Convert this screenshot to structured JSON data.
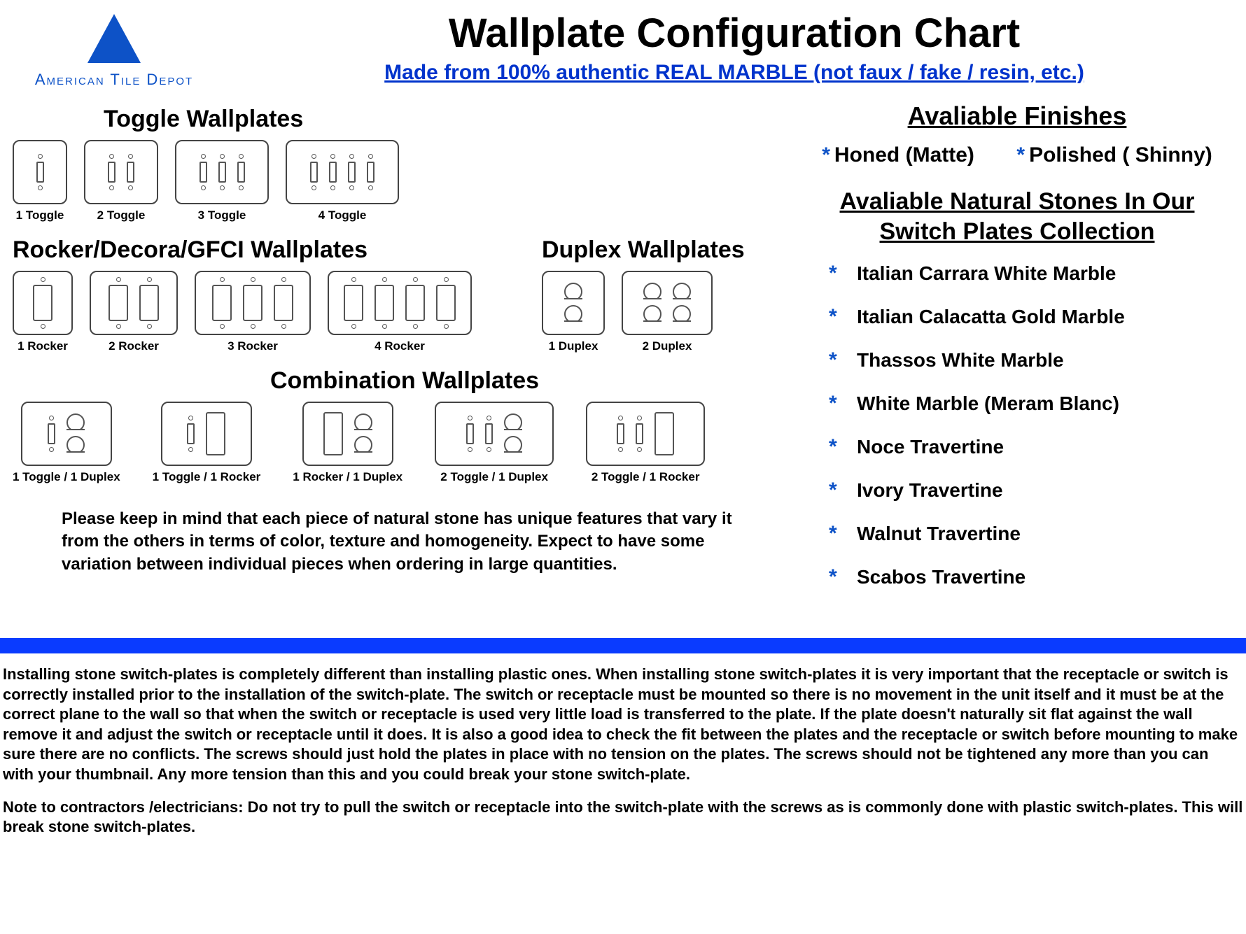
{
  "logo": {
    "brand": "American Tile Depot"
  },
  "title": "Wallplate Configuration Chart",
  "subtitle": "Made from 100% authentic REAL MARBLE (not faux / fake / resin, etc.)",
  "sections": {
    "toggle_title": "Toggle Wallplates",
    "rocker_title": "Rocker/Decora/GFCI Wallplates",
    "duplex_title": "Duplex Wallplates",
    "combo_title": "Combination Wallplates"
  },
  "toggles": [
    {
      "label": "1 Toggle",
      "gangs": 1
    },
    {
      "label": "2 Toggle",
      "gangs": 2
    },
    {
      "label": "3 Toggle",
      "gangs": 3
    },
    {
      "label": "4 Toggle",
      "gangs": 4
    }
  ],
  "rockers": [
    {
      "label": "1 Rocker",
      "gangs": 1
    },
    {
      "label": "2 Rocker",
      "gangs": 2
    },
    {
      "label": "3 Rocker",
      "gangs": 3
    },
    {
      "label": "4 Rocker",
      "gangs": 4
    }
  ],
  "duplex": [
    {
      "label": "1 Duplex",
      "gangs": 1
    },
    {
      "label": "2 Duplex",
      "gangs": 2
    }
  ],
  "combos": [
    {
      "label": "1 Toggle / 1 Duplex",
      "slots": [
        "toggle",
        "duplex"
      ]
    },
    {
      "label": "1 Toggle / 1 Rocker",
      "slots": [
        "toggle",
        "rocker"
      ]
    },
    {
      "label": "1 Rocker / 1 Duplex",
      "slots": [
        "rocker",
        "duplex"
      ]
    },
    {
      "label": "2 Toggle / 1 Duplex",
      "slots": [
        "toggle",
        "toggle",
        "duplex"
      ]
    },
    {
      "label": "2 Toggle / 1 Rocker",
      "slots": [
        "toggle",
        "toggle",
        "rocker"
      ]
    }
  ],
  "note": "Please keep in mind that each piece of natural stone has unique features that vary it from the others in terms of color, texture and homogeneity. Expect to have some variation between individual pieces when ordering in large quantities.",
  "finishes_title": "Avaliable Finishes",
  "finishes": [
    "Honed (Matte)",
    "Polished ( Shinny)"
  ],
  "stones_title": "Avaliable Natural Stones In Our Switch Plates Collection",
  "stones": [
    "Italian Carrara White Marble",
    "Italian Calacatta Gold Marble",
    "Thassos White Marble",
    "White Marble (Meram Blanc)",
    "Noce Travertine",
    "Ivory Travertine",
    "Walnut Travertine",
    "Scabos Travertine"
  ],
  "bottom_para1": "Installing stone switch-plates is completely different than installing plastic ones. When installing stone switch-plates it is very important that the receptacle or switch is correctly installed prior to the installation of the switch-plate. The switch or receptacle must be mounted so there is no movement in the unit itself and it must be at the correct plane to the wall so that when the switch or receptacle is used very little load is transferred to the plate. If the plate doesn't naturally sit flat against the wall remove it and adjust the switch or receptacle until it does. It is also a good idea to check the fit between the plates and the receptacle or switch before mounting to make sure there are no conflicts. The screws should just hold the plates in place with no tension on the plates. The screws should not be tightened any more than you can with your thumbnail. Any more tension than this and you could break your stone switch-plate.",
  "bottom_para2": "Note to contractors /electricians: Do not try to pull the switch or receptacle into the switch-plate with the screws as is commonly done with plastic switch-plates. This will break stone switch-plates.",
  "colors": {
    "accent": "#0d52c7",
    "link": "#0033cc",
    "bar": "#0a3bff",
    "background": "#ffffff",
    "text": "#000000",
    "outline": "#444444"
  },
  "fonts": {
    "title_size": 58,
    "subtitle_size": 30,
    "section_size": 34,
    "label_size": 17,
    "body_size": 22,
    "finish_size": 30,
    "stone_size": 28
  }
}
